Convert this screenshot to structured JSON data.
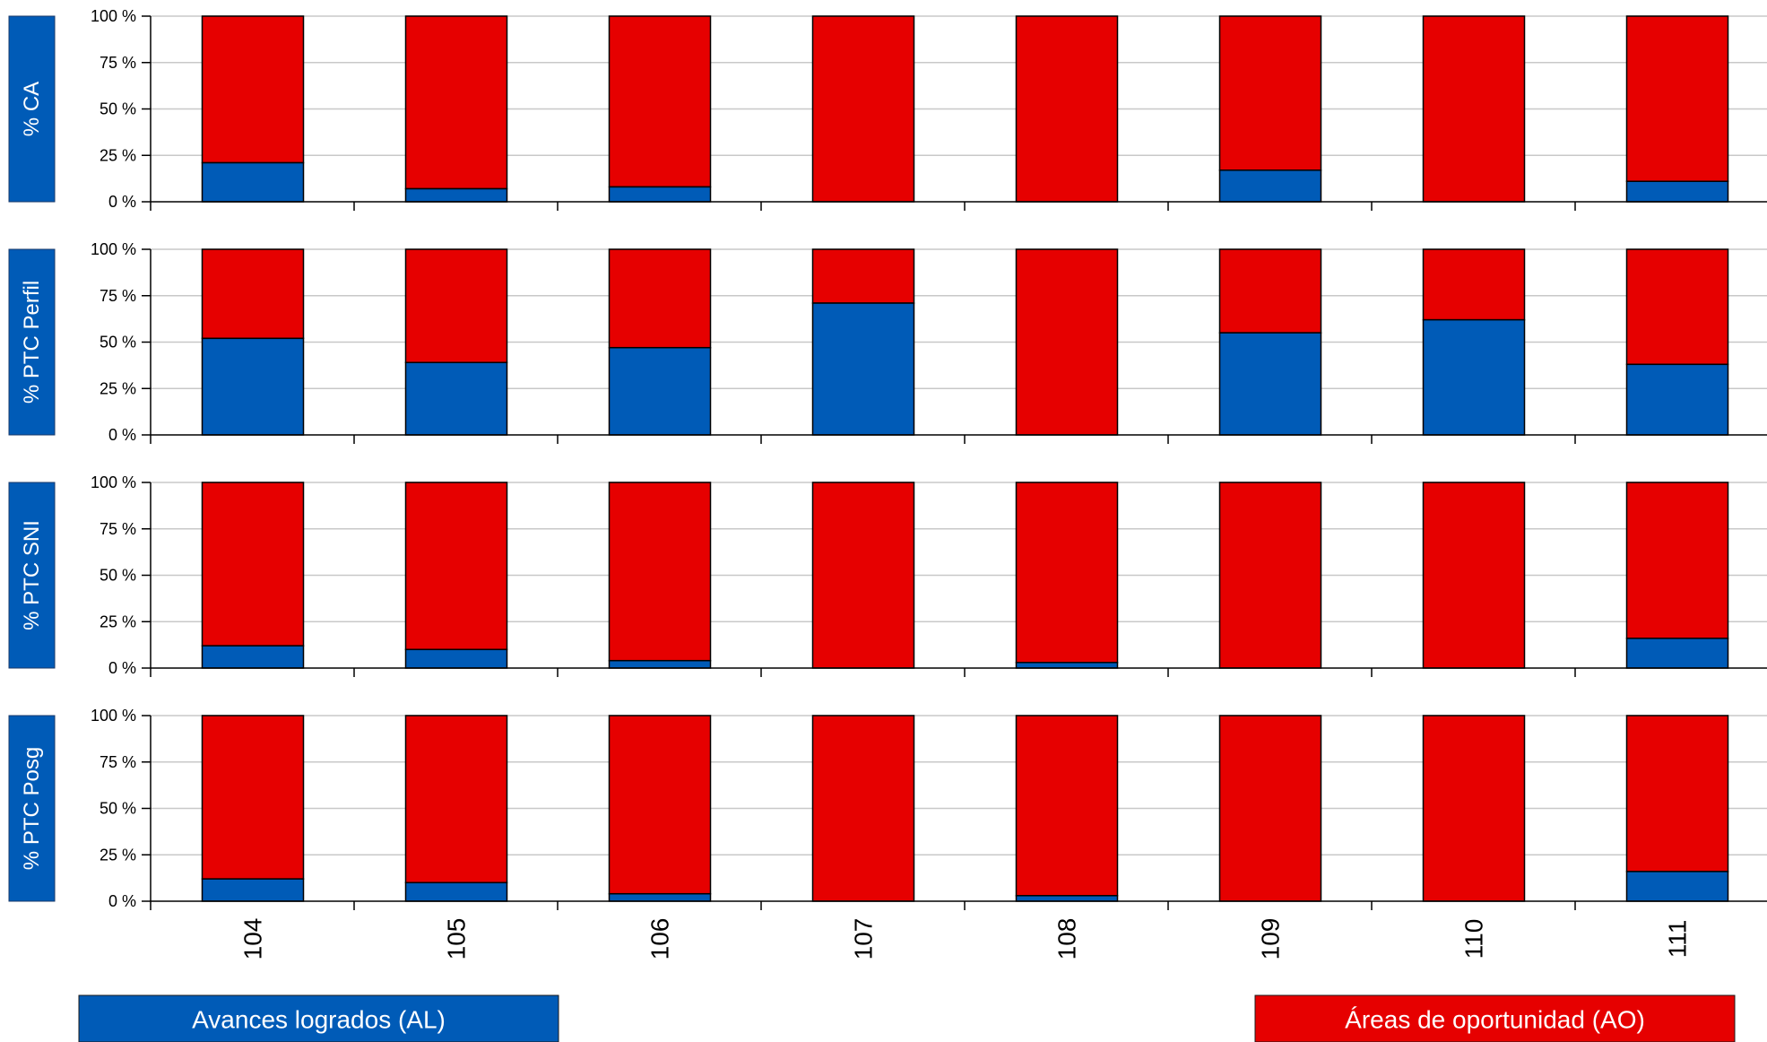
{
  "chart_data": {
    "type": "bar",
    "stacked": true,
    "percent": true,
    "categories": [
      "104",
      "105",
      "106",
      "107",
      "108",
      "109",
      "110",
      "111"
    ],
    "ylim": [
      0,
      100
    ],
    "yticks": [
      "0 %",
      "25 %",
      "50 %",
      "75 %",
      "100 %"
    ],
    "grid": true,
    "panels": [
      {
        "ylabel": "% CA",
        "series": [
          {
            "name": "Avances logrados (AL)",
            "values": [
              21,
              7,
              8,
              0,
              0,
              17,
              0,
              11
            ]
          },
          {
            "name": "Áreas de oportunidad (AO)",
            "values": [
              79,
              93,
              92,
              100,
              100,
              83,
              100,
              89
            ]
          }
        ]
      },
      {
        "ylabel": "% PTC Perfil",
        "series": [
          {
            "name": "Avances logrados (AL)",
            "values": [
              52,
              39,
              47,
              71,
              0,
              55,
              62,
              38
            ]
          },
          {
            "name": "Áreas de oportunidad (AO)",
            "values": [
              48,
              61,
              53,
              29,
              100,
              45,
              38,
              62
            ]
          }
        ]
      },
      {
        "ylabel": "% PTC SNI",
        "series": [
          {
            "name": "Avances logrados (AL)",
            "values": [
              12,
              10,
              4,
              0,
              3,
              0,
              0,
              16
            ]
          },
          {
            "name": "Áreas de oportunidad (AO)",
            "values": [
              88,
              90,
              96,
              100,
              97,
              100,
              100,
              84
            ]
          }
        ]
      },
      {
        "ylabel": "% PTC Posg",
        "series": [
          {
            "name": "Avances logrados (AL)",
            "values": [
              12,
              10,
              4,
              0,
              3,
              0,
              0,
              16
            ]
          },
          {
            "name": "Áreas de oportunidad (AO)",
            "values": [
              88,
              90,
              96,
              100,
              97,
              100,
              100,
              84
            ]
          }
        ]
      }
    ],
    "legend": {
      "position": "bottom",
      "items": [
        {
          "label": "Avances logrados (AL)",
          "color": "#005bb7"
        },
        {
          "label": "Áreas de oportunidad (AO)",
          "color": "#e60000"
        }
      ]
    },
    "colors": {
      "al": "#005bb7",
      "ao": "#e60000",
      "panel_label_bg": "#005bb7",
      "grid": "#c8c8c8"
    }
  }
}
